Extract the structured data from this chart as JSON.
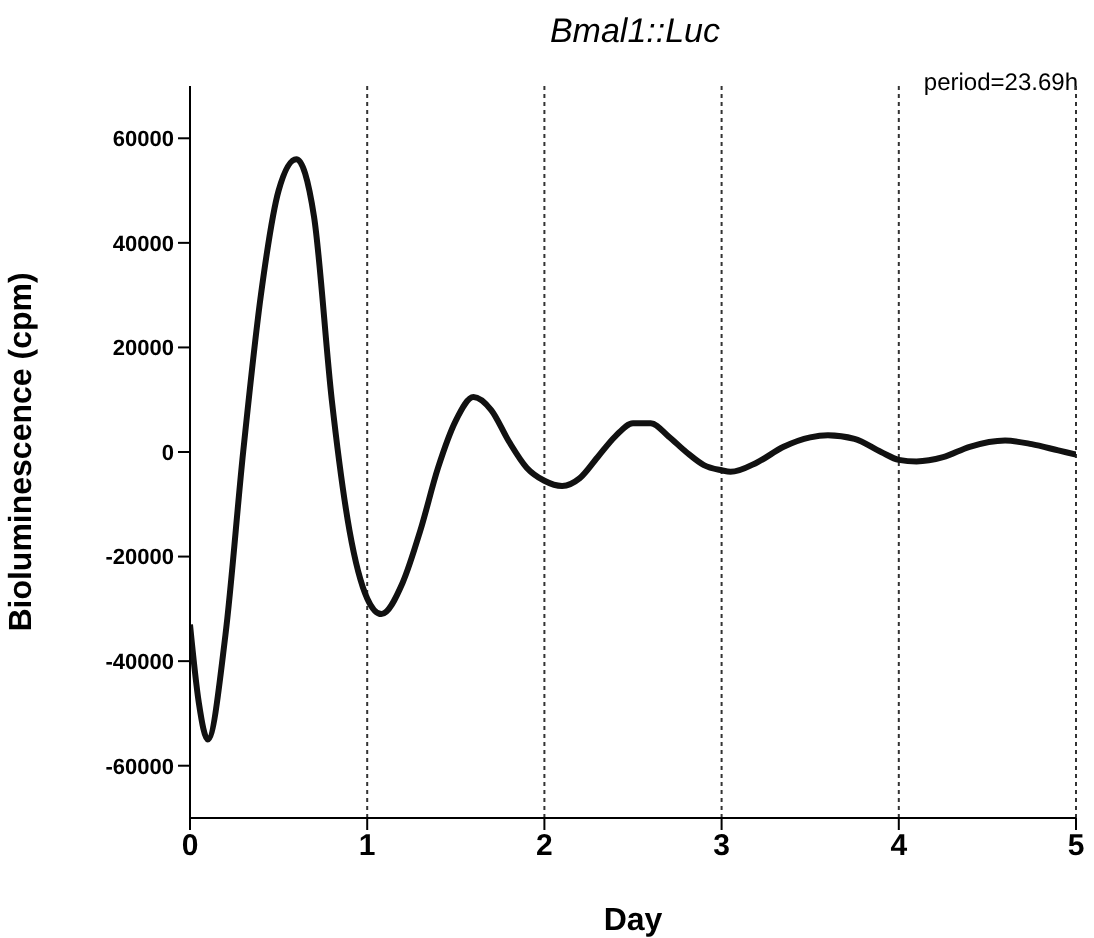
{
  "chart_data": {
    "type": "line",
    "title": "Bmal1::Luc",
    "xlabel": "Day",
    "ylabel": "Bioluminescence (cpm)",
    "annotations": [
      "period=23.69h"
    ],
    "x": [
      0,
      0.05,
      0.1,
      0.2,
      0.3,
      0.4,
      0.5,
      0.6,
      0.7,
      0.8,
      0.9,
      1.0,
      1.08,
      1.2,
      1.3,
      1.4,
      1.5,
      1.6,
      1.7,
      1.8,
      1.9,
      2.0,
      2.1,
      2.2,
      2.3,
      2.4,
      2.5,
      2.6,
      2.7,
      2.8,
      2.9,
      3.0,
      3.05,
      3.2,
      3.35,
      3.5,
      3.6,
      3.75,
      3.9,
      4.0,
      4.1,
      4.25,
      4.4,
      4.6,
      4.75,
      4.9,
      5.0
    ],
    "series": [
      {
        "color": "#111111",
        "values": [
          -33000,
          -48000,
          -55000,
          -35000,
          0,
          30000,
          50000,
          56000,
          45000,
          10000,
          -15000,
          -28000,
          -31000,
          -25000,
          -15000,
          -3000,
          6000,
          10500,
          8000,
          2000,
          -3000,
          -5500,
          -6500,
          -5000,
          -1000,
          3000,
          5500,
          5500,
          3000,
          0,
          -2500,
          -3500,
          -3800,
          -2000,
          1000,
          2800,
          3200,
          2500,
          0,
          -1500,
          -1800,
          -1000,
          1000,
          2200,
          1500,
          300,
          -500
        ]
      }
    ],
    "xlim": [
      0,
      5
    ],
    "xticks": [
      0,
      1,
      2,
      3,
      4,
      5
    ],
    "ylim": [
      -70000,
      70000
    ],
    "yticks": [
      -60000,
      -40000,
      -20000,
      0,
      20000,
      40000,
      60000
    ],
    "grid": "x",
    "legend": false,
    "marker": "none",
    "line_style": "solid"
  }
}
